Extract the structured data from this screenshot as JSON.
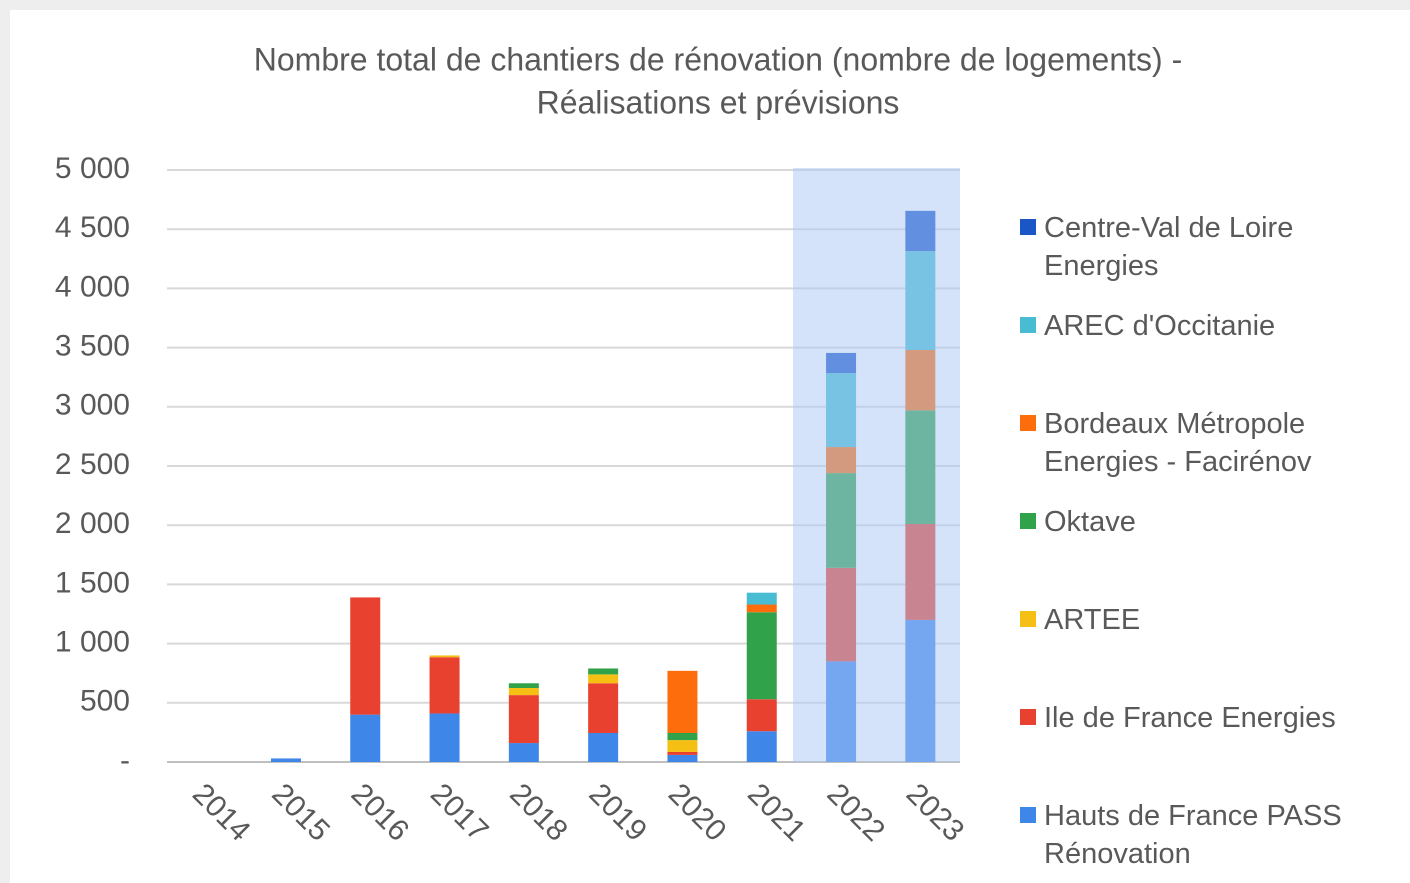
{
  "chart_data": {
    "type": "bar",
    "stacked": true,
    "title": [
      "Nombre  total de chantiers de rénovation (nombre  de logements) -",
      "Réalisations et prévisions"
    ],
    "categories": [
      "2014",
      "2015",
      "2016",
      "2017",
      "2018",
      "2019",
      "2020",
      "2021",
      "2022",
      "2023"
    ],
    "series": [
      {
        "name": "Hauts de France PASS Rénovation",
        "color": "#3f86e9",
        "values": [
          0,
          30,
          400,
          410,
          160,
          245,
          60,
          260,
          850,
          1200
        ]
      },
      {
        "name": "Ile de France Energies",
        "color": "#e8412f",
        "values": [
          0,
          0,
          990,
          475,
          405,
          420,
          25,
          270,
          790,
          810
        ]
      },
      {
        "name": "ARTEE",
        "color": "#f5c013",
        "values": [
          0,
          0,
          0,
          15,
          60,
          75,
          100,
          0,
          0,
          0
        ]
      },
      {
        "name": "Oktave",
        "color": "#30a24a",
        "values": [
          0,
          0,
          0,
          0,
          40,
          50,
          60,
          735,
          800,
          960
        ]
      },
      {
        "name": "Bordeaux Métropole Energies - Facirénov",
        "color": "#fd6d0b",
        "values": [
          0,
          0,
          0,
          0,
          0,
          0,
          525,
          65,
          220,
          510
        ]
      },
      {
        "name": "AREC d'Occitanie",
        "color": "#47bcd2",
        "values": [
          0,
          0,
          0,
          0,
          0,
          0,
          0,
          100,
          625,
          835
        ]
      },
      {
        "name": "Centre-Val de Loire Energies",
        "color": "#1a56c8",
        "values": [
          0,
          0,
          0,
          0,
          0,
          0,
          0,
          0,
          170,
          340
        ]
      }
    ],
    "ylim": [
      0,
      5000
    ],
    "yticks": [
      {
        "value": 0,
        "label": "-"
      },
      500,
      {
        "value": 1000,
        "label": "1 000"
      },
      {
        "value": 1500,
        "label": "1 500"
      },
      {
        "value": 2000,
        "label": "2 000"
      },
      {
        "value": 2500,
        "label": "2 500"
      },
      {
        "value": 3000,
        "label": "3 000"
      },
      {
        "value": 3500,
        "label": "3 500"
      },
      {
        "value": 4000,
        "label": "4 000"
      },
      {
        "value": 4500,
        "label": "4 500"
      },
      {
        "value": 5000,
        "label": "5 000"
      }
    ],
    "grid": true,
    "legend": "right"
  }
}
